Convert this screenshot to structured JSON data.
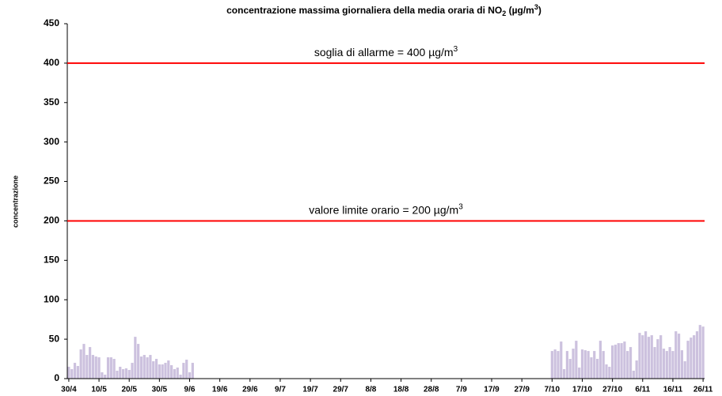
{
  "chart_data": {
    "type": "bar",
    "title": [
      "concentrazione massima giornaliera della media oraria di NO",
      "2",
      " (µg/m",
      "3",
      ")"
    ],
    "y_label": "concentrazione",
    "color": "#ccc1de",
    "ylim": [
      0,
      450
    ],
    "yticks": [
      0,
      50,
      100,
      150,
      200,
      250,
      300,
      350,
      400,
      450
    ],
    "reference_lines": [
      {
        "value": 400,
        "color": "#ff0000",
        "label": [
          "soglia di allarme = 400 µg/m",
          "3"
        ]
      },
      {
        "value": 200,
        "color": "#ff0000",
        "label": [
          "valore limite orario = 200 µg/m",
          "3"
        ]
      }
    ],
    "categories": [
      "30/4",
      null,
      null,
      null,
      null,
      null,
      null,
      null,
      null,
      null,
      "10/5",
      null,
      null,
      null,
      null,
      null,
      null,
      null,
      null,
      null,
      "20/5",
      null,
      null,
      null,
      null,
      null,
      null,
      null,
      null,
      null,
      "30/5",
      null,
      null,
      null,
      null,
      null,
      null,
      null,
      null,
      null,
      "9/6",
      null,
      null,
      null,
      null,
      null,
      null,
      null,
      null,
      null,
      "19/6",
      null,
      null,
      null,
      null,
      null,
      null,
      null,
      null,
      null,
      "29/6",
      null,
      null,
      null,
      null,
      null,
      null,
      null,
      null,
      null,
      "9/7",
      null,
      null,
      null,
      null,
      null,
      null,
      null,
      null,
      null,
      "19/7",
      null,
      null,
      null,
      null,
      null,
      null,
      null,
      null,
      null,
      "29/7",
      null,
      null,
      null,
      null,
      null,
      null,
      null,
      null,
      null,
      "8/8",
      null,
      null,
      null,
      null,
      null,
      null,
      null,
      null,
      null,
      "18/8",
      null,
      null,
      null,
      null,
      null,
      null,
      null,
      null,
      null,
      "28/8",
      null,
      null,
      null,
      null,
      null,
      null,
      null,
      null,
      null,
      "7/9",
      null,
      null,
      null,
      null,
      null,
      null,
      null,
      null,
      null,
      "17/9",
      null,
      null,
      null,
      null,
      null,
      null,
      null,
      null,
      null,
      "27/9",
      null,
      null,
      null,
      null,
      null,
      null,
      null,
      null,
      null,
      "7/10",
      null,
      null,
      null,
      null,
      null,
      null,
      null,
      null,
      null,
      "17/10",
      null,
      null,
      null,
      null,
      null,
      null,
      null,
      null,
      null,
      "27/10",
      null,
      null,
      null,
      null,
      null,
      null,
      null,
      null,
      null,
      "6/11",
      null,
      null,
      null,
      null,
      null,
      null,
      null,
      null,
      null,
      "16/11",
      null,
      null,
      null,
      null,
      null,
      null,
      null,
      null,
      null,
      "26/11"
    ],
    "values": [
      15,
      12,
      20,
      16,
      37,
      44,
      30,
      40,
      30,
      28,
      27,
      8,
      5,
      27,
      27,
      25,
      10,
      15,
      12,
      13,
      11,
      20,
      53,
      44,
      28,
      30,
      27,
      30,
      22,
      25,
      18,
      18,
      20,
      23,
      17,
      12,
      14,
      5,
      20,
      24,
      8,
      20,
      null,
      null,
      null,
      null,
      null,
      null,
      null,
      null,
      null,
      null,
      null,
      null,
      null,
      null,
      null,
      null,
      null,
      null,
      null,
      null,
      null,
      null,
      null,
      null,
      null,
      null,
      null,
      null,
      null,
      null,
      null,
      null,
      null,
      null,
      null,
      null,
      null,
      null,
      null,
      null,
      null,
      null,
      null,
      null,
      null,
      null,
      null,
      null,
      null,
      null,
      null,
      null,
      null,
      null,
      null,
      null,
      null,
      null,
      null,
      null,
      null,
      null,
      null,
      null,
      null,
      null,
      null,
      null,
      null,
      null,
      null,
      null,
      null,
      null,
      null,
      null,
      null,
      null,
      null,
      null,
      null,
      null,
      null,
      null,
      null,
      null,
      null,
      null,
      null,
      null,
      null,
      null,
      null,
      null,
      null,
      null,
      null,
      null,
      null,
      null,
      null,
      null,
      null,
      null,
      null,
      null,
      null,
      null,
      null,
      null,
      null,
      null,
      null,
      null,
      null,
      null,
      null,
      null,
      35,
      37,
      35,
      47,
      12,
      35,
      25,
      38,
      48,
      14,
      37,
      36,
      35,
      27,
      35,
      25,
      48,
      35,
      18,
      15,
      42,
      43,
      45,
      45,
      47,
      35,
      40,
      10,
      23,
      58,
      55,
      60,
      53,
      55,
      40,
      50,
      55,
      38,
      35,
      40,
      35,
      60,
      57,
      36,
      22,
      48,
      52,
      55,
      60,
      68,
      66
    ]
  }
}
